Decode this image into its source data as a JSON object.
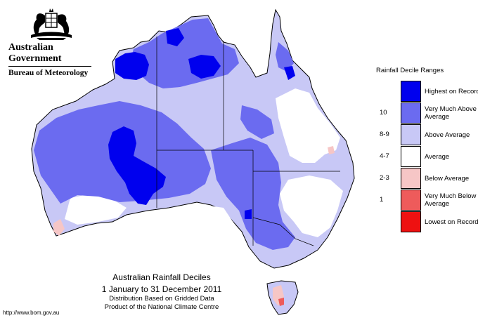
{
  "logo": {
    "line1": "Australian Government",
    "line2": "Bureau of Meteorology"
  },
  "legend": {
    "title": "Rainfall Decile Ranges",
    "ranges": [
      {
        "range": "",
        "label": "Highest on Record",
        "color": "#0000ee"
      },
      {
        "range": "10",
        "label": "Very Much Above Average",
        "color": "#6b6bf0"
      },
      {
        "range": "8-9",
        "label": "Above Average",
        "color": "#c8c8f6"
      },
      {
        "range": "4-7",
        "label": "Average",
        "color": "#ffffff"
      },
      {
        "range": "2-3",
        "label": "Below Average",
        "color": "#f6c6c6"
      },
      {
        "range": "1",
        "label": "Very Much Below Average",
        "color": "#ee5b5b"
      },
      {
        "range": "",
        "label": "Lowest on Record",
        "color": "#ee1111"
      }
    ]
  },
  "caption": {
    "title": "Australian Rainfall Deciles",
    "period": "1 January to 31 December 2011",
    "line3": "Distribution Based on Gridded Data",
    "line4": "Product of the National Climate Centre"
  },
  "source_url": "http://www.bom.gov.au"
}
